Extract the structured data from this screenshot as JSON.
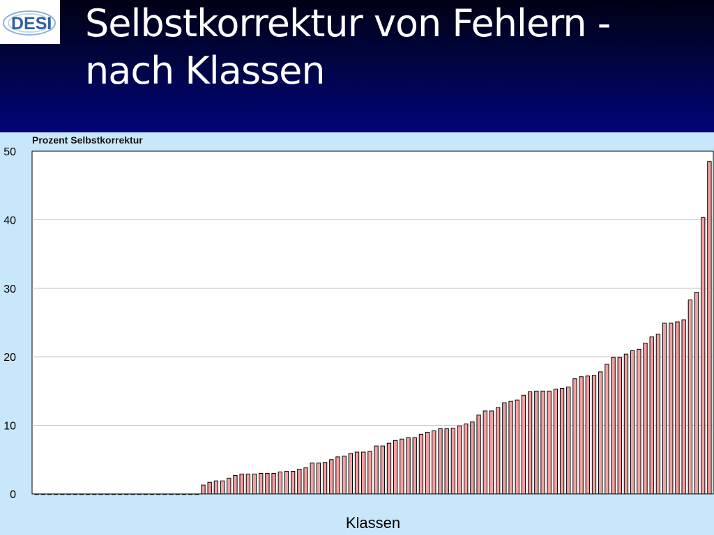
{
  "slide": {
    "title_line1": "Selbstkorrektur von Fehlern -",
    "title_line2": "nach Klassen"
  },
  "logo": {
    "text": "DESI"
  },
  "colors": {
    "header_top": "#000015",
    "header_bottom": "#02047a",
    "chart_background": "#c9e7fb",
    "plot_background": "#ffffff",
    "bar_fill": "#f2a1a1",
    "bar_stroke": "#000000",
    "grid": "#b0b0b0"
  },
  "chart_data": {
    "type": "bar",
    "ylabel": "Prozent Selbstkorrektur",
    "xlabel": "Klassen",
    "ylim": [
      0,
      50
    ],
    "yticks": [
      0,
      10,
      20,
      30,
      40,
      50
    ],
    "grid": true,
    "legend": "none",
    "values": [
      0,
      0,
      0,
      0,
      0,
      0,
      0,
      0,
      0,
      0,
      0,
      0,
      0,
      0,
      0,
      0,
      0,
      0,
      0,
      0,
      0,
      0,
      0,
      0,
      0,
      0,
      1.3,
      1.7,
      1.9,
      1.9,
      2.3,
      2.7,
      2.9,
      2.9,
      2.9,
      3.0,
      3.0,
      3.0,
      3.2,
      3.3,
      3.3,
      3.6,
      3.8,
      4.5,
      4.5,
      4.6,
      5.0,
      5.4,
      5.5,
      5.9,
      6.1,
      6.1,
      6.2,
      7.0,
      7.0,
      7.4,
      7.8,
      8.0,
      8.2,
      8.2,
      8.7,
      9.0,
      9.2,
      9.5,
      9.5,
      9.6,
      9.9,
      10.2,
      10.5,
      11.5,
      12.1,
      12.1,
      12.6,
      13.3,
      13.5,
      13.7,
      14.4,
      14.9,
      15.0,
      15.0,
      15.0,
      15.3,
      15.4,
      15.6,
      16.8,
      17.1,
      17.2,
      17.3,
      17.8,
      18.9,
      19.9,
      19.9,
      20.4,
      20.9,
      21.1,
      22.0,
      22.9,
      23.3,
      24.9,
      24.9,
      25.1,
      25.4,
      28.3,
      29.4,
      40.3,
      48.5
    ]
  }
}
